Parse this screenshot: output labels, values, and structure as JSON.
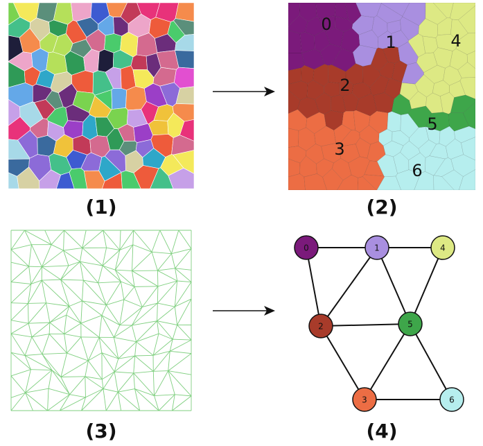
{
  "captions": {
    "p1": "(1)",
    "p2": "(2)",
    "p3": "(3)",
    "p4": "(4)"
  },
  "regions": [
    {
      "id": "0",
      "color": "#7b1a7b"
    },
    {
      "id": "1",
      "color": "#a98fe0"
    },
    {
      "id": "2",
      "color": "#a83b2a"
    },
    {
      "id": "3",
      "color": "#ec6d44"
    },
    {
      "id": "4",
      "color": "#dde984"
    },
    {
      "id": "5",
      "color": "#3ea64a"
    },
    {
      "id": "6",
      "color": "#b6eeee"
    }
  ],
  "graph": {
    "nodes": [
      "0",
      "1",
      "2",
      "3",
      "4",
      "5",
      "6"
    ],
    "edges": [
      [
        "0",
        "1"
      ],
      [
        "1",
        "4"
      ],
      [
        "0",
        "2"
      ],
      [
        "1",
        "2"
      ],
      [
        "1",
        "5"
      ],
      [
        "4",
        "5"
      ],
      [
        "2",
        "5"
      ],
      [
        "2",
        "3"
      ],
      [
        "3",
        "5"
      ],
      [
        "5",
        "6"
      ],
      [
        "3",
        "6"
      ]
    ]
  },
  "colors": {
    "mesh_stroke": "#7fcf7f",
    "edge_stroke": "#111111",
    "node_stroke": "#111111",
    "cell_border": "#ffffff"
  }
}
